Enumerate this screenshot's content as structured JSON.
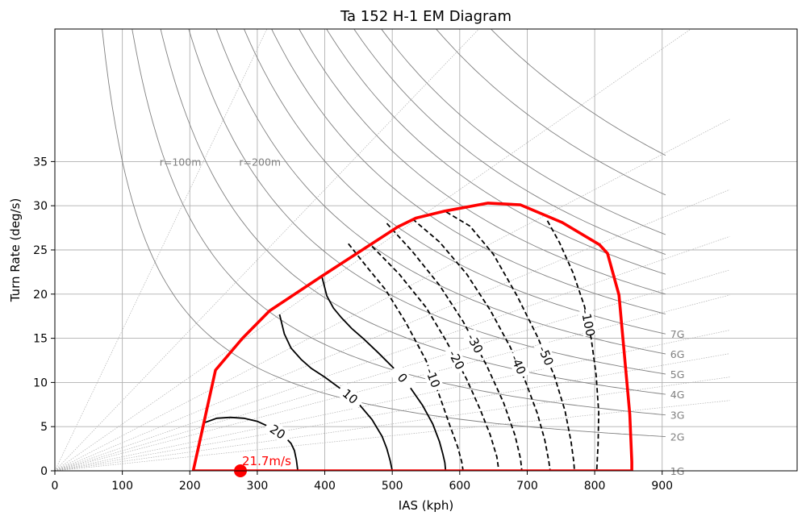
{
  "chart_data": {
    "type": "line",
    "title": "Ta 152 H-1 EM Diagram",
    "xlabel": "IAS (kph)",
    "ylabel": "Turn Rate (deg/s)",
    "xlim": [
      0,
      1100
    ],
    "ylim": [
      0,
      50
    ],
    "xticks": [
      "0",
      "100",
      "200",
      "300",
      "400",
      "500",
      "600",
      "700",
      "800",
      "900"
    ],
    "yticks": [
      "0",
      "5",
      "10",
      "15",
      "20",
      "25",
      "30",
      "35"
    ],
    "grid": true,
    "legend": "none",
    "colors": {
      "envelope": "#ff0000",
      "grid": "#b0b0b0",
      "g_lines": "#808080",
      "radius_lines": "#b0b0b0",
      "contours": "#000000"
    },
    "envelope": {
      "x": [
        205,
        238,
        278,
        318,
        395,
        508,
        535,
        578,
        642,
        690,
        752,
        807,
        819,
        836,
        852,
        855,
        855,
        205
      ],
      "y": [
        0,
        11.4,
        15.0,
        18.1,
        22.0,
        27.6,
        28.6,
        29.4,
        30.3,
        30.1,
        28.1,
        25.6,
        24.6,
        19.9,
        6.4,
        1.0,
        0,
        0
      ]
    },
    "g_lines": [
      {
        "label": "1G",
        "n": 1
      },
      {
        "label": "2G",
        "n": 2
      },
      {
        "label": "3G",
        "n": 3
      },
      {
        "label": "4G",
        "n": 4
      },
      {
        "label": "5G",
        "n": 5
      },
      {
        "label": "6G",
        "n": 6
      },
      {
        "label": "7G",
        "n": 7
      },
      {
        "label": "",
        "n": 8
      },
      {
        "label": "",
        "n": 9
      },
      {
        "label": "",
        "n": 10
      },
      {
        "label": "",
        "n": 11
      },
      {
        "label": "",
        "n": 12
      },
      {
        "label": "",
        "n": 14
      },
      {
        "label": "",
        "n": 16
      }
    ],
    "radius_lines": [
      {
        "label": "r=100m",
        "r": 100
      },
      {
        "label": "r=200m",
        "r": 200
      },
      {
        "label": "",
        "r": 300
      },
      {
        "label": "",
        "r": 400
      },
      {
        "label": "",
        "r": 500
      },
      {
        "label": "",
        "r": 600
      },
      {
        "label": "",
        "r": 700
      },
      {
        "label": "",
        "r": 800
      },
      {
        "label": "",
        "r": 1000
      },
      {
        "label": "",
        "r": 1200
      },
      {
        "label": "",
        "r": 1500
      },
      {
        "label": "",
        "r": 2000
      }
    ],
    "ps_contours": [
      {
        "label": "20",
        "dashed": false,
        "x": [
          220,
          240,
          260,
          280,
          300,
          320,
          340,
          350,
          355,
          358,
          360
        ],
        "y": [
          5.4,
          5.95,
          6.05,
          5.95,
          5.6,
          4.9,
          3.9,
          3.1,
          2.3,
          1.2,
          0
        ]
      },
      {
        "label": "10",
        "dashed": false,
        "x": [
          333,
          340,
          350,
          365,
          380,
          400,
          425,
          450,
          470,
          485,
          492,
          497,
          500
        ],
        "y": [
          17.7,
          15.5,
          13.9,
          12.6,
          11.6,
          10.6,
          9.2,
          7.6,
          5.8,
          3.9,
          2.5,
          1.1,
          0
        ]
      },
      {
        "label": "0",
        "dashed": false,
        "x": [
          396,
          403,
          413,
          425,
          440,
          458,
          480,
          505,
          525,
          545,
          560,
          570,
          575,
          578,
          579
        ],
        "y": [
          21.9,
          19.8,
          18.4,
          17.3,
          16.1,
          14.9,
          13.3,
          11.4,
          9.6,
          7.4,
          5.3,
          3.3,
          1.9,
          0.9,
          0
        ]
      },
      {
        "label": "-10",
        "dashed": true,
        "x": [
          435,
          460,
          490,
          520,
          550,
          570,
          585,
          597,
          603,
          605
        ],
        "y": [
          25.7,
          23.3,
          20.5,
          16.8,
          12.5,
          8.5,
          5.2,
          2.7,
          1.0,
          0
        ]
      },
      {
        "label": "-20",
        "dashed": true,
        "x": [
          470,
          510,
          550,
          580,
          610,
          630,
          645,
          655,
          658
        ],
        "y": [
          25.4,
          22.3,
          18.5,
          14.7,
          10.4,
          7.0,
          4.1,
          1.6,
          0
        ]
      },
      {
        "label": "-30",
        "dashed": true,
        "x": [
          492,
          530,
          570,
          605,
          640,
          665,
          682,
          690,
          692
        ],
        "y": [
          28.0,
          24.8,
          21.0,
          16.9,
          11.9,
          7.7,
          4.0,
          1.4,
          0
        ]
      },
      {
        "label": "-40",
        "dashed": true,
        "x": [
          530,
          570,
          610,
          645,
          675,
          698,
          715,
          726,
          732,
          734
        ],
        "y": [
          28.5,
          25.9,
          22.3,
          18.2,
          14.0,
          10.0,
          6.5,
          3.5,
          1.1,
          0
        ]
      },
      {
        "label": "-50",
        "dashed": true,
        "x": [
          580,
          615,
          650,
          685,
          715,
          740,
          756,
          765,
          769,
          770
        ],
        "y": [
          29.3,
          27.7,
          24.5,
          19.8,
          15.2,
          10.8,
          6.8,
          3.3,
          1.0,
          0
        ]
      },
      {
        "label": "-100",
        "dashed": true,
        "x": [
          730,
          748,
          768,
          785,
          795,
          802,
          806,
          805,
          803
        ],
        "y": [
          28.3,
          25.8,
          22.4,
          18.6,
          14.9,
          10.9,
          6.6,
          3.0,
          0
        ]
      }
    ],
    "point": {
      "x": 275,
      "y": 0,
      "label": "21.7m/s"
    }
  }
}
